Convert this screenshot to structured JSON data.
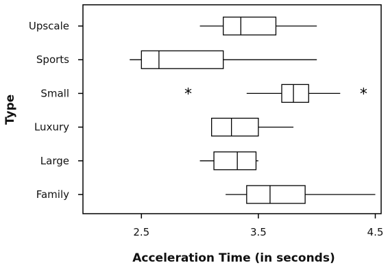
{
  "chart_data": {
    "type": "boxplot",
    "orientation": "horizontal",
    "xlabel": "Acceleration Time (in seconds)",
    "ylabel": "Type",
    "xlim": [
      2.0,
      4.55
    ],
    "xticks": [
      2.5,
      3.5,
      4.5
    ],
    "xtick_labels": [
      "2.5",
      "3.5",
      "4.5"
    ],
    "categories": [
      "Upscale",
      "Sports",
      "Small",
      "Luxury",
      "Large",
      "Family"
    ],
    "boxes": [
      {
        "category": "Upscale",
        "min": 3.0,
        "q1": 3.2,
        "median": 3.35,
        "q3": 3.65,
        "max": 4.0,
        "outliers": []
      },
      {
        "category": "Sports",
        "min": 2.4,
        "q1": 2.5,
        "median": 2.65,
        "q3": 3.2,
        "max": 4.0,
        "outliers": []
      },
      {
        "category": "Small",
        "min": 3.4,
        "q1": 3.7,
        "median": 3.8,
        "q3": 3.93,
        "max": 4.2,
        "outliers": [
          2.9,
          4.4
        ]
      },
      {
        "category": "Luxury",
        "min": 3.1,
        "q1": 3.1,
        "median": 3.27,
        "q3": 3.5,
        "max": 3.8,
        "outliers": []
      },
      {
        "category": "Large",
        "min": 3.0,
        "q1": 3.12,
        "median": 3.32,
        "q3": 3.48,
        "max": 3.5,
        "outliers": []
      },
      {
        "category": "Family",
        "min": 3.22,
        "q1": 3.4,
        "median": 3.6,
        "q3": 3.9,
        "max": 4.5,
        "outliers": []
      }
    ],
    "grid": false,
    "legend": "none"
  }
}
